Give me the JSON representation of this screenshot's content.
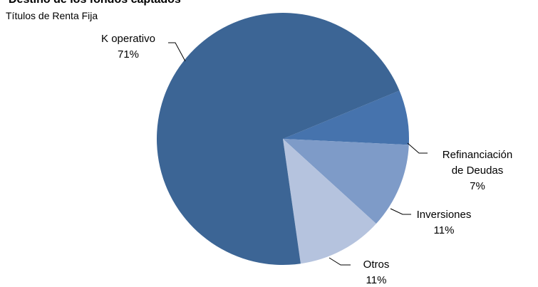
{
  "chart_data": {
    "type": "pie",
    "title": "Destino de los fondos captados",
    "subtitle": "Títulos de Renta Fija",
    "slices": [
      {
        "label": [
          "K operativo"
        ],
        "pct_label": "71%",
        "value": 71,
        "color": "#3c6595"
      },
      {
        "label": [
          "Refinanciación",
          "de Deudas"
        ],
        "pct_label": "7%",
        "value": 7,
        "color": "#4673ad"
      },
      {
        "label": [
          "Inversiones"
        ],
        "pct_label": "11%",
        "value": 11,
        "color": "#7e9bc8"
      },
      {
        "label": [
          "Otros"
        ],
        "pct_label": "11%",
        "value": 11,
        "color": "#b5c3de"
      }
    ],
    "legend": "none"
  }
}
